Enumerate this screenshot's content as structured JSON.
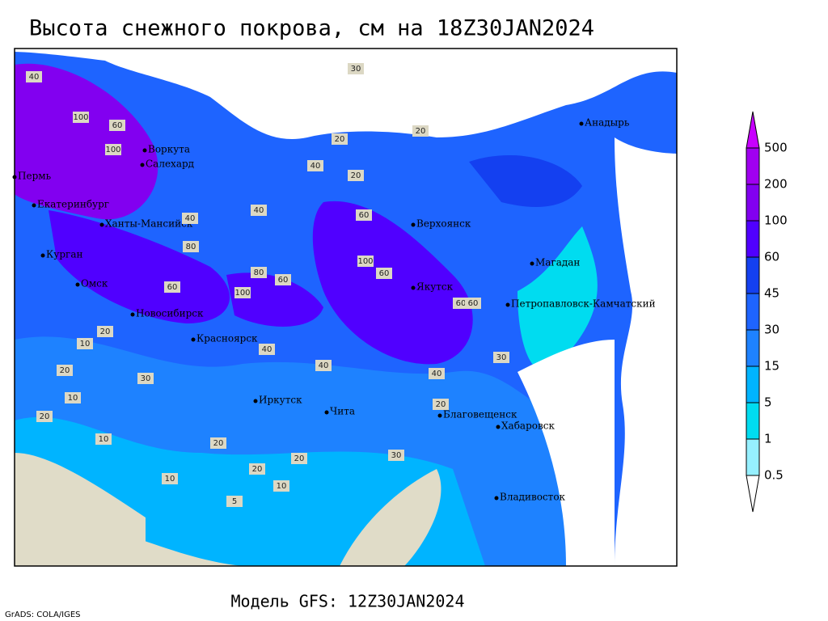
{
  "title": "Высота снежного покрова, см на 18Z30JAN2024",
  "footer": "Модель GFS: 12Z30JAN2024",
  "credit": "GrADS: COLA/IGES",
  "legend": {
    "levels": [
      0.5,
      1,
      5,
      15,
      30,
      45,
      60,
      100,
      200,
      500
    ],
    "colors": [
      "#96f0ff",
      "#00dcf0",
      "#00b4ff",
      "#1e82ff",
      "#1e64ff",
      "#1440f0",
      "#5000ff",
      "#8200f0",
      "#a000f0",
      "#c800ff"
    ],
    "below_color": "#ffffff"
  },
  "cities": [
    "Воркута",
    "Салехард",
    "Пермь",
    "Екатеринбург",
    "Ханты-Мансийск",
    "Курган",
    "Омск",
    "Новосибирск",
    "Красноярск",
    "Иркутск",
    "Чита",
    "Благовещенск",
    "Хабаровск",
    "Владивосток",
    "Якутск",
    "Верхоянск",
    "Магадан",
    "Петропавловск-Камчатский",
    "Анадырь"
  ],
  "contour_labels": [
    40,
    100,
    60,
    100,
    30,
    20,
    20,
    20,
    40,
    40,
    60,
    40,
    80,
    60,
    100,
    60,
    100,
    80,
    60,
    40,
    20,
    10,
    20,
    30,
    10,
    20,
    20,
    10,
    20,
    10,
    20,
    30,
    10,
    5,
    60,
    40,
    30,
    20,
    40,
    60
  ]
}
